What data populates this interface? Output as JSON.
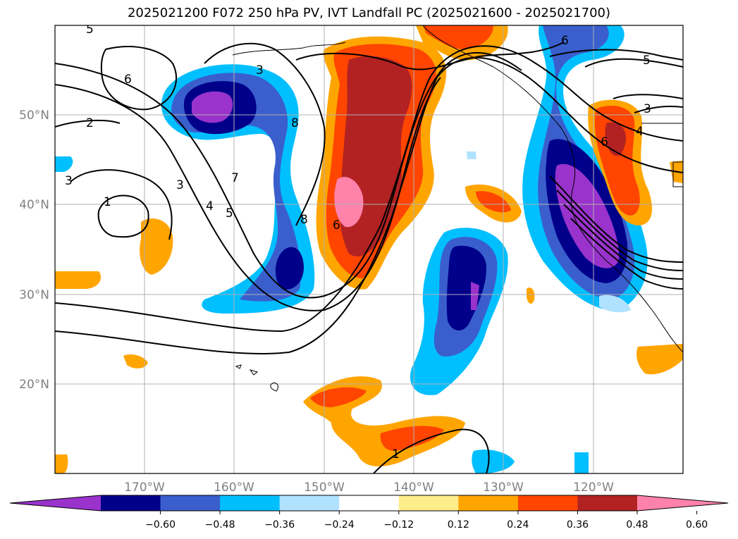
{
  "title": "2025021200 F072 250 hPa PV, IVT Landfall PC (2025021600 - 2025021700)",
  "lat_labels": [
    "50°N",
    "40°N",
    "30°N",
    "20°N"
  ],
  "lon_labels": [
    "170°W",
    "160°W",
    "150°W",
    "140°W",
    "130°W",
    "120°W"
  ],
  "colorbar": {
    "ticks": [
      "−0.60",
      "−0.48",
      "−0.36",
      "−0.24",
      "−0.12",
      "0.12",
      "0.24",
      "0.36",
      "0.48",
      "0.60"
    ],
    "colors": [
      "#9933cc",
      "#00008b",
      "#3a5fcd",
      "#00bfff",
      "#b0e2ff",
      "#ffffff",
      "#ffec8b",
      "#ffa500",
      "#ff4500",
      "#b22222",
      "#ff82ab"
    ]
  },
  "contour_labels": {
    "c5_top": "5",
    "c6_left": "6",
    "c2_left": "2",
    "c3_left": "3",
    "c1_left": "1",
    "c3_mid": "3",
    "c4_mid": "4",
    "c5_mid": "5",
    "c7_mid": "7",
    "c8_mid": "8",
    "c3_upper": "3",
    "c8_upper": "8",
    "c6_center": "6",
    "c1_bottom": "1",
    "c6_right": "6",
    "c5_right": "5",
    "c3_right": "3",
    "c4_right": "4",
    "c6_right2": "6"
  }
}
